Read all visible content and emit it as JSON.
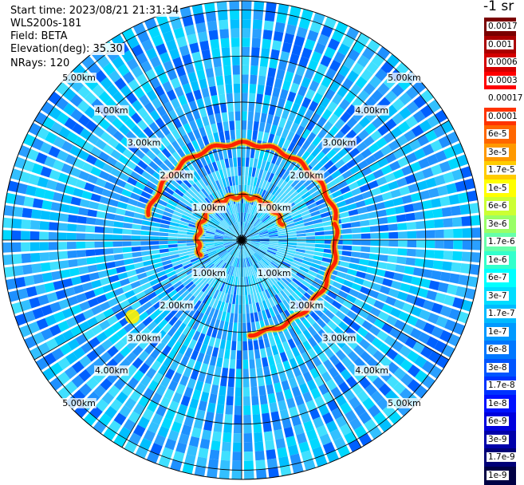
{
  "info": {
    "start_time": "Start time: 2023/08/21 21:31:34",
    "instrument": "WLS200s-181",
    "field": "Field: BETA",
    "elevation": "Elevation(deg): 35.30",
    "nrays": "NRays: 120"
  },
  "colorbar": {
    "title": "-1 sr",
    "labels": [
      "0.0017",
      "0.001",
      "0.0006",
      "0.0003",
      "0.00017",
      "0.0001",
      "6e-5",
      "3e-5",
      "1.7e-5",
      "1e-5",
      "6e-6",
      "3e-6",
      "1.7e-6",
      "1e-6",
      "6e-7",
      "3e-7",
      "1.7e-7",
      "1e-7",
      "6e-8",
      "3e-8",
      "1.7e-8",
      "1e-8",
      "6e-9",
      "3e-9",
      "1.7e-9",
      "1e-9"
    ],
    "colors": [
      "#7a0000",
      "#aa0000",
      "#d40000",
      "#ff0000",
      "#ffffff",
      "#ff3300",
      "#ff6600",
      "#ff9900",
      "#ffcc00",
      "#ffff00",
      "#ccff33",
      "#99ff66",
      "#66ffaa",
      "#33ffcc",
      "#00ffff",
      "#00ddff",
      "#00bbff",
      "#0099ff",
      "#0077ff",
      "#0055ff",
      "#0033ff",
      "#0011ff",
      "#0000dd",
      "#0000aa",
      "#000077",
      "#000044"
    ]
  },
  "chart_data": {
    "type": "heatmap",
    "projection": "polar (PPI scan)",
    "nrays": 120,
    "range_rings_km": [
      1,
      2,
      3,
      4,
      5
    ],
    "range_ring_labels": [
      "1.00km",
      "2.00km",
      "3.00km",
      "4.00km",
      "5.00km"
    ],
    "max_range_km": 5.2,
    "field": "BETA",
    "units": "-1 sr",
    "background_colors": [
      "#1e90ff",
      "#00bfff",
      "#2aa0ff",
      "#00d8ff",
      "#0060ff",
      "#33c0ff",
      "#40e0ff"
    ],
    "high_backscatter_features": [
      {
        "description": "arc",
        "start_azimuth_deg": 285,
        "end_azimuth_deg": 80,
        "range_km": 2.1,
        "color": "#ff2200"
      },
      {
        "description": "arc",
        "start_azimuth_deg": 80,
        "end_azimuth_deg": 175,
        "range_km": 2.05,
        "color": "#ff2200"
      },
      {
        "description": "inner arc",
        "start_azimuth_deg": 250,
        "end_azimuth_deg": 70,
        "range_km": 0.95,
        "color": "#ff3300"
      },
      {
        "description": "patch",
        "azimuth_deg": 235,
        "range_km": 2.9,
        "color": "#ffee00"
      }
    ]
  }
}
